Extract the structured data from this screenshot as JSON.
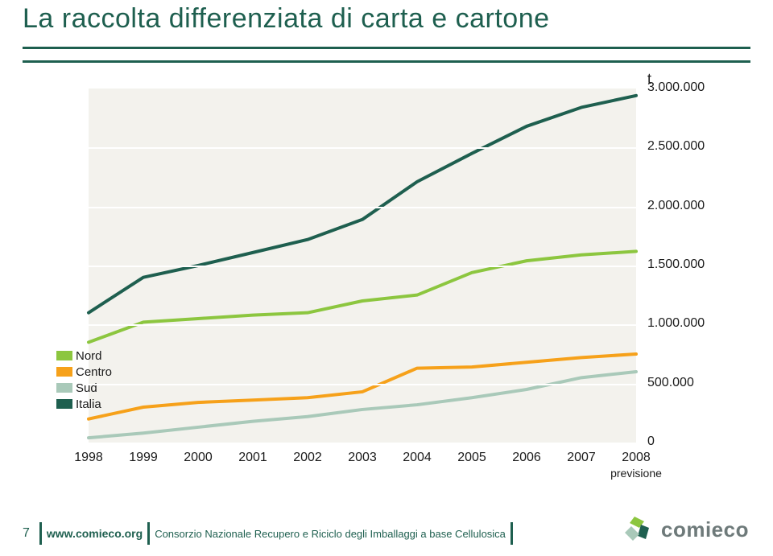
{
  "title": "La raccolta differenziata di carta e cartone",
  "rule_color": "#1e5f4f",
  "chart": {
    "type": "line",
    "background_color": "#f3f2ed",
    "grid_color": "#ffffff",
    "text_color": "#1a1a1a",
    "y_unit": "t",
    "y_min": 0,
    "y_max": 3000000,
    "y_ticks": [
      0,
      500000,
      1000000,
      1500000,
      2000000,
      2500000,
      3000000
    ],
    "y_labels": [
      "0",
      "500.000",
      "1.000.000",
      "1.500.000",
      "2.000.000",
      "2.500.000",
      "3.000.000"
    ],
    "x_categories": [
      "1998",
      "1999",
      "2000",
      "2001",
      "2002",
      "2003",
      "2004",
      "2005",
      "2006",
      "2007",
      "2008"
    ],
    "x_sublabel": {
      "index": 10,
      "text": "previsione"
    },
    "line_width": 4,
    "series": [
      {
        "name": "Nord",
        "color": "#8cc63f",
        "values": [
          850000,
          1020000,
          1050000,
          1080000,
          1100000,
          1200000,
          1250000,
          1440000,
          1540000,
          1590000,
          1620000
        ]
      },
      {
        "name": "Centro",
        "color": "#f6a11a",
        "values": [
          200000,
          300000,
          340000,
          360000,
          380000,
          430000,
          630000,
          640000,
          680000,
          720000,
          750000
        ]
      },
      {
        "name": "Sud",
        "color": "#a9c9b9",
        "values": [
          40000,
          80000,
          130000,
          180000,
          220000,
          280000,
          320000,
          380000,
          450000,
          550000,
          600000
        ]
      },
      {
        "name": "Italia",
        "color": "#1e5f4f",
        "values": [
          1100000,
          1400000,
          1500000,
          1610000,
          1720000,
          1890000,
          2210000,
          2450000,
          2680000,
          2840000,
          2940000
        ]
      }
    ],
    "legend": {
      "swatch_w": 20,
      "swatch_h": 12,
      "font_size": 15
    }
  },
  "footer": {
    "page_num": "7",
    "sep_color": "#1e5f4f",
    "link": "www.comieco.org",
    "link_color": "#1e5f4f",
    "text": "Consorzio Nazionale Recupero e Riciclo degli Imballaggi a base Cellulosica",
    "text_color": "#1e5f4f"
  },
  "logo": {
    "brand": "comieco",
    "text_color": "#6e7a7a",
    "arrow_colors": [
      "#8cc63f",
      "#1e5f4f",
      "#a9c9b9"
    ]
  }
}
